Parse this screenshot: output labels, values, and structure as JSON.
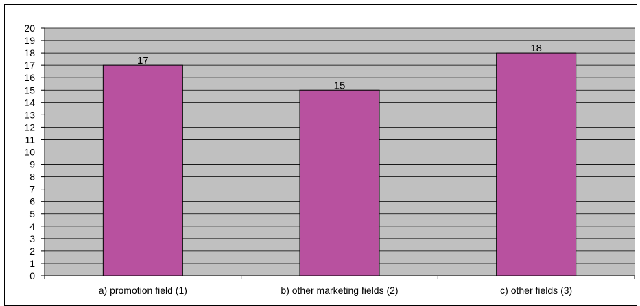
{
  "chart_data": {
    "type": "bar",
    "title": "",
    "xlabel": "",
    "ylabel": "",
    "categories": [
      "a) promotion field (1)",
      "b) other marketing fields (2)",
      "c) other fields (3)"
    ],
    "values": [
      17,
      15,
      18
    ],
    "data_labels": [
      "17",
      "15",
      "18"
    ],
    "ylim": [
      0,
      20
    ],
    "yticks": [
      "0",
      "1",
      "2",
      "3",
      "4",
      "5",
      "6",
      "7",
      "8",
      "9",
      "10",
      "11",
      "12",
      "13",
      "14",
      "15",
      "16",
      "17",
      "18",
      "19",
      "20"
    ],
    "grid": true,
    "legend": "none",
    "colors": {
      "bar_fill": "#b8519f",
      "bar_stroke": "#000000",
      "plot_background": "#c0c0c0",
      "gridline": "#000000"
    }
  }
}
